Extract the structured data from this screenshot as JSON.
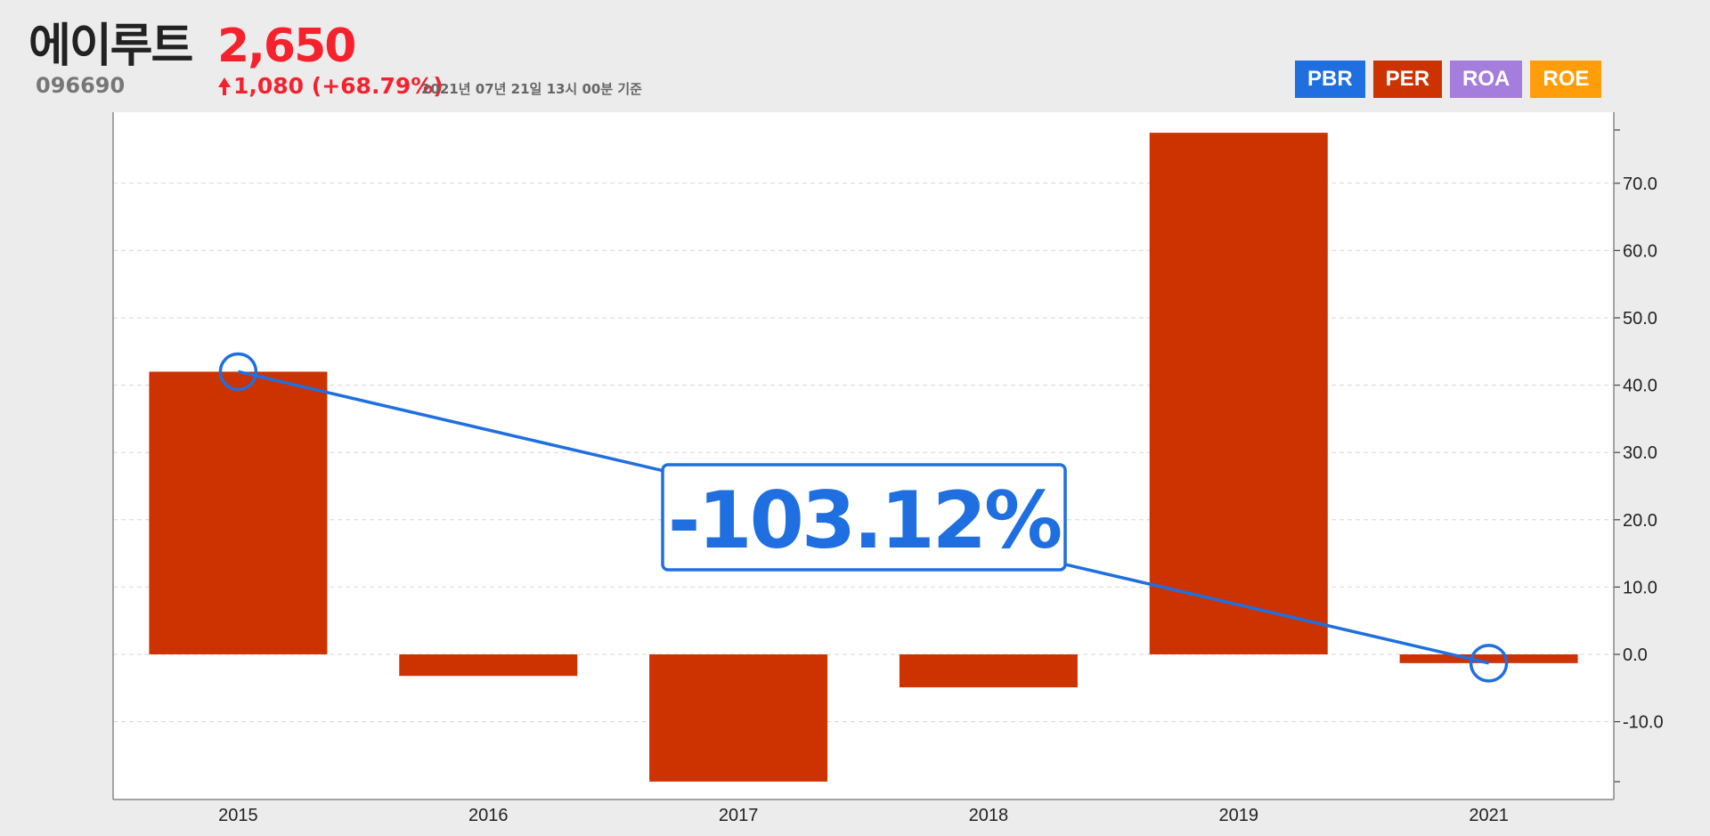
{
  "header": {
    "company": "에이루트",
    "price": "2,650",
    "code": "096690",
    "change": "1,080 (+68.79%)",
    "as_of": "2021년 07년 21일 13시 00분 기준"
  },
  "tabs": [
    {
      "label": "PBR",
      "color": "#1f6fe0"
    },
    {
      "label": "PER",
      "color": "#cc3300"
    },
    {
      "label": "ROA",
      "color": "#a57ddc"
    },
    {
      "label": "ROE",
      "color": "#ff9d0a"
    }
  ],
  "colors": {
    "bar": "#cc3300",
    "trend": "#1f6fe0",
    "price_up": "#f5222d"
  },
  "chart_data": {
    "type": "bar",
    "categories": [
      "2015",
      "2016",
      "2017",
      "2018",
      "2019",
      "2021"
    ],
    "values": [
      42.0,
      -3.2,
      -18.9,
      -4.9,
      77.5,
      -1.3
    ],
    "ylim": [
      -19.0,
      78.0
    ],
    "yticks": [
      "-10.0",
      "0.0",
      "10.0",
      "20.0",
      "30.0",
      "40.0",
      "50.0",
      "60.0",
      "70.0"
    ],
    "grid": true,
    "y_axis_side": "right",
    "trend": {
      "from": "2015",
      "to": "2021",
      "label": "-103.12%"
    }
  }
}
